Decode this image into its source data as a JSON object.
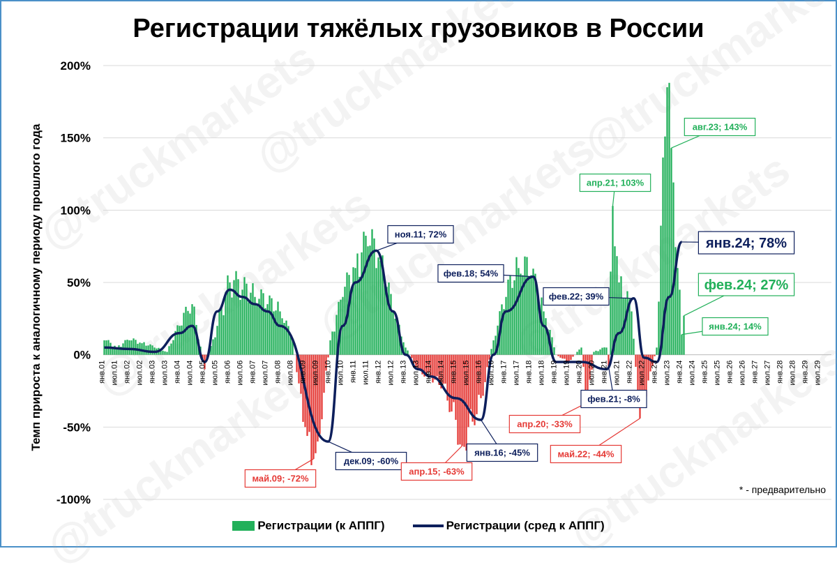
{
  "title": "Регистрации тяжёлых грузовиков в России",
  "watermark": "@truckmarkets",
  "footnote": "* - предварительно",
  "legend": {
    "bars": "Регистрации (к АППГ)",
    "line": "Регистрации (сред к АППГ)"
  },
  "colors": {
    "positive": "#22b05a",
    "negative": "#e53935",
    "line": "#0d1f5c",
    "grid": "#d9d9d9"
  },
  "chart_data": {
    "type": "bar",
    "title": "Регистрации тяжёлых грузовиков в России",
    "ylabel": "Темп прироста к аналогичному периоду прошлого года",
    "xlabel": "",
    "ylim": [
      -1.0,
      2.0
    ],
    "yticks": [
      "200%",
      "150%",
      "100%",
      "50%",
      "0%",
      "-50%",
      "-100%"
    ],
    "ytick_values": [
      2.0,
      1.5,
      1.0,
      0.5,
      0.0,
      -0.5,
      -1.0
    ],
    "x_start": "янв.01",
    "x_end": "дек.29",
    "x_tick_labels": [
      "янв.01",
      "июл.01",
      "янв.02",
      "июл.02",
      "янв.03",
      "июл.03",
      "янв.04",
      "июл.04",
      "янв.05",
      "июл.05",
      "янв.06",
      "июл.06",
      "янв.07",
      "июл.07",
      "янв.08",
      "июл.08",
      "янв.09",
      "июл.09",
      "янв.10",
      "июл.10",
      "янв.11",
      "июл.11",
      "янв.12",
      "июл.12",
      "янв.13",
      "июл.13",
      "янв.14",
      "июл.14",
      "янв.15",
      "июл.15",
      "янв.16",
      "июл.16",
      "янв.17",
      "июл.17",
      "янв.18",
      "июл.18",
      "янв.19",
      "июл.19",
      "янв.20",
      "июл.20",
      "янв.21",
      "июл.21",
      "янв.22",
      "июл.22",
      "янв.23",
      "июл.23",
      "янв.24",
      "июл.24",
      "янв.25",
      "июл.25",
      "янв.26",
      "июл.26",
      "янв.27",
      "июл.27",
      "янв.28",
      "июл.28",
      "янв.29",
      "июл.29"
    ],
    "series": [
      {
        "name": "Регистрации (к АППГ)",
        "kind": "bar",
        "interpolated_from_anchors": true,
        "anchors": [
          [
            "янв.01",
            0.1
          ],
          [
            "июл.01",
            0.05
          ],
          [
            "янв.02",
            0.1
          ],
          [
            "июл.02",
            0.08
          ],
          [
            "янв.03",
            0.05
          ],
          [
            "июл.03",
            0.02
          ],
          [
            "янв.04",
            0.2
          ],
          [
            "июл.04",
            0.35
          ],
          [
            "янв.05",
            -0.1
          ],
          [
            "июл.05",
            0.2
          ],
          [
            "янв.06",
            0.5
          ],
          [
            "июл.06",
            0.45
          ],
          [
            "янв.07",
            0.4
          ],
          [
            "июл.07",
            0.35
          ],
          [
            "янв.08",
            0.3
          ],
          [
            "июл.08",
            0.1
          ],
          [
            "янв.09",
            -0.5
          ],
          [
            "май.09",
            -0.72
          ],
          [
            "июл.09",
            -0.6
          ],
          [
            "янв.10",
            0.1
          ],
          [
            "июл.10",
            0.4
          ],
          [
            "янв.11",
            0.6
          ],
          [
            "июл.11",
            0.75
          ],
          [
            "янв.12",
            0.65
          ],
          [
            "июл.12",
            0.3
          ],
          [
            "янв.13",
            0.05
          ],
          [
            "июл.13",
            -0.1
          ],
          [
            "янв.14",
            -0.15
          ],
          [
            "июл.14",
            -0.2
          ],
          [
            "янв.15",
            -0.45
          ],
          [
            "апр.15",
            -0.63
          ],
          [
            "июл.15",
            -0.5
          ],
          [
            "янв.16",
            -0.3
          ],
          [
            "июл.16",
            0.1
          ],
          [
            "янв.17",
            0.4
          ],
          [
            "июл.17",
            0.6
          ],
          [
            "янв.18",
            0.55
          ],
          [
            "июл.18",
            0.3
          ],
          [
            "янв.19",
            0.0
          ],
          [
            "июл.19",
            -0.05
          ],
          [
            "янв.20",
            0.05
          ],
          [
            "апр.20",
            -0.33
          ],
          [
            "июл.20",
            0.02
          ],
          [
            "янв.21",
            0.05
          ],
          [
            "фев.21",
            -0.08
          ],
          [
            "апр.21",
            1.03
          ],
          [
            "июл.21",
            0.5
          ],
          [
            "янв.22",
            0.3
          ],
          [
            "май.22",
            -0.44
          ],
          [
            "июл.22",
            -0.3
          ],
          [
            "янв.23",
            0.05
          ],
          [
            "июн.23",
            1.85
          ],
          [
            "авг.23",
            1.43
          ],
          [
            "ноя.23",
            0.6
          ],
          [
            "янв.24",
            0.14
          ],
          [
            "фев.24",
            0.27
          ]
        ]
      },
      {
        "name": "Регистрации (сред к АППГ)",
        "kind": "line",
        "anchors": [
          [
            "янв.01",
            0.05
          ],
          [
            "янв.02",
            0.04
          ],
          [
            "янв.03",
            0.02
          ],
          [
            "янв.04",
            0.15
          ],
          [
            "июл.04",
            0.2
          ],
          [
            "янв.05",
            -0.05
          ],
          [
            "июл.05",
            0.3
          ],
          [
            "янв.06",
            0.45
          ],
          [
            "июл.06",
            0.4
          ],
          [
            "янв.07",
            0.35
          ],
          [
            "июл.07",
            0.3
          ],
          [
            "янв.08",
            0.2
          ],
          [
            "дек.09",
            -0.6
          ],
          [
            "июл.10",
            0.2
          ],
          [
            "янв.11",
            0.5
          ],
          [
            "ноя.11",
            0.72
          ],
          [
            "июл.12",
            0.3
          ],
          [
            "янв.13",
            0.0
          ],
          [
            "июл.13",
            -0.1
          ],
          [
            "янв.14",
            -0.15
          ],
          [
            "янв.15",
            -0.3
          ],
          [
            "янв.16",
            -0.45
          ],
          [
            "июл.16",
            0.0
          ],
          [
            "янв.17",
            0.3
          ],
          [
            "фев.18",
            0.54
          ],
          [
            "июл.18",
            0.2
          ],
          [
            "янв.19",
            -0.05
          ],
          [
            "янв.20",
            -0.05
          ],
          [
            "янв.21",
            -0.1
          ],
          [
            "июл.21",
            0.15
          ],
          [
            "фев.22",
            0.39
          ],
          [
            "июл.22",
            -0.02
          ],
          [
            "янв.23",
            -0.05
          ],
          [
            "июл.23",
            0.4
          ],
          [
            "янв.24",
            0.78
          ]
        ]
      }
    ],
    "annotations": [
      {
        "text": "май.09; -72%",
        "color": "#e53935",
        "x": "май.09",
        "y": -0.72
      },
      {
        "text": "дек.09; -60%",
        "color": "#0d1f5c",
        "x": "дек.09",
        "y": -0.6
      },
      {
        "text": "ноя.11; 72%",
        "color": "#0d1f5c",
        "x": "ноя.11",
        "y": 0.72
      },
      {
        "text": "апр.15; -63%",
        "color": "#e53935",
        "x": "апр.15",
        "y": -0.63
      },
      {
        "text": "янв.16; -45%",
        "color": "#0d1f5c",
        "x": "янв.16",
        "y": -0.45
      },
      {
        "text": "фев.18; 54%",
        "color": "#0d1f5c",
        "x": "фев.18",
        "y": 0.54
      },
      {
        "text": "апр.20; -33%",
        "color": "#e53935",
        "x": "апр.20",
        "y": -0.33
      },
      {
        "text": "фев.21; -8%",
        "color": "#0d1f5c",
        "x": "фев.21",
        "y": -0.08
      },
      {
        "text": "апр.21; 103%",
        "color": "#22b05a",
        "x": "апр.21",
        "y": 1.03
      },
      {
        "text": "фев.22; 39%",
        "color": "#0d1f5c",
        "x": "фев.22",
        "y": 0.39
      },
      {
        "text": "май.22; -44%",
        "color": "#e53935",
        "x": "май.22",
        "y": -0.44
      },
      {
        "text": "авг.23; 143%",
        "color": "#22b05a",
        "x": "авг.23",
        "y": 1.43
      },
      {
        "text": "янв.24; 78%",
        "color": "#0d1f5c",
        "x": "янв.24",
        "y": 0.78,
        "large": true
      },
      {
        "text": "фев.24; 27%",
        "color": "#22b05a",
        "x": "фев.24",
        "y": 0.27,
        "large": true
      },
      {
        "text": "янв.24; 14%",
        "color": "#22b05a",
        "x": "янв.24",
        "y": 0.14
      }
    ],
    "grid": true,
    "legend_position": "bottom"
  }
}
